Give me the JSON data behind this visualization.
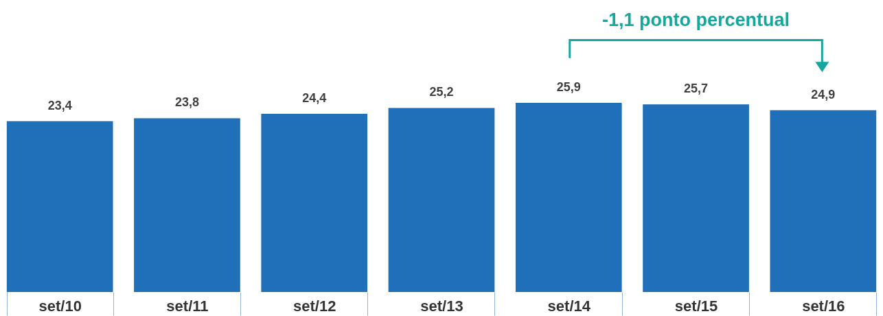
{
  "chart_data": {
    "type": "bar",
    "categories": [
      "set/10",
      "set/11",
      "set/12",
      "set/13",
      "set/14",
      "set/15",
      "set/16"
    ],
    "values": [
      23.4,
      23.8,
      24.4,
      25.2,
      25.9,
      25.7,
      24.9
    ],
    "color": "#1f70b8",
    "tick_labels": "x",
    "grid": false,
    "value_labels": [
      "23,4",
      "23,8",
      "24,4",
      "25,2",
      "25,9",
      "25,7",
      "24,9"
    ],
    "annotations": [
      "-1,1 ponto percentual"
    ]
  }
}
